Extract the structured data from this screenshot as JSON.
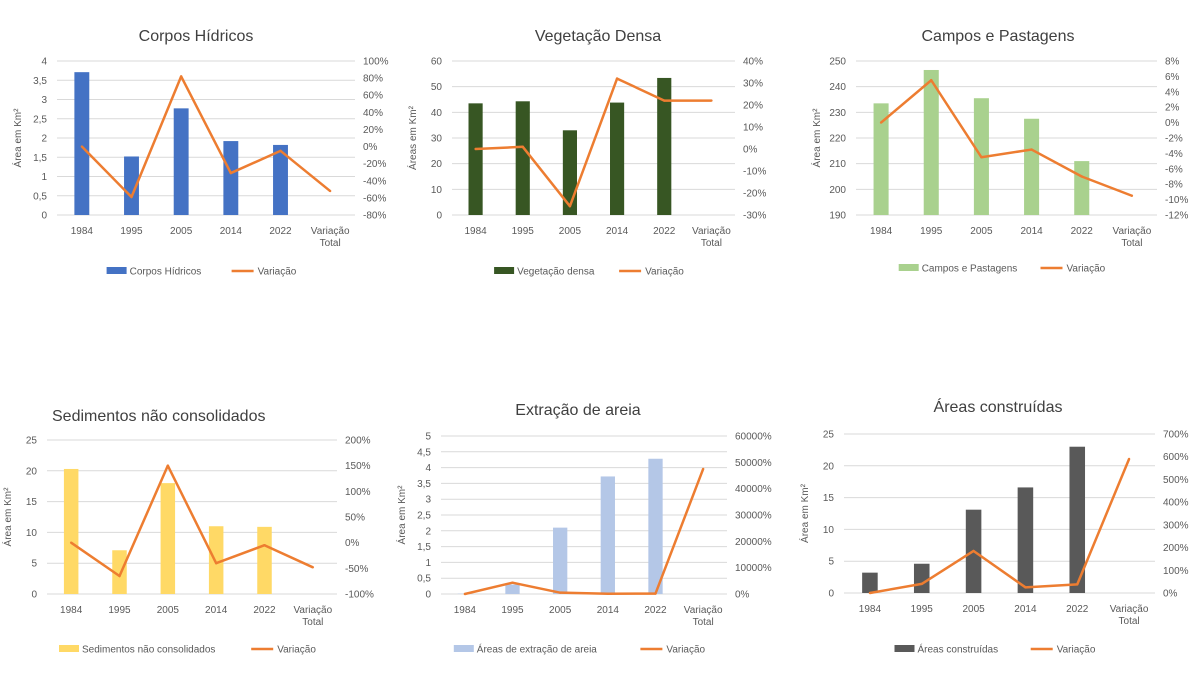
{
  "chart_data": [
    {
      "type": "bar",
      "title": "Corpos Hídricos",
      "categories": [
        "1984",
        "1995",
        "2005",
        "2014",
        "2022",
        "Variação Total"
      ],
      "xlabel": "",
      "ylabel": "Área em Km²",
      "ylim": [
        0,
        4
      ],
      "y_ticks": [
        "0",
        "0,5",
        "1",
        "1,5",
        "2",
        "2,5",
        "3",
        "3,5",
        "4"
      ],
      "y2lim": [
        -80,
        100
      ],
      "y2_ticks": [
        "-80%",
        "-60%",
        "-40%",
        "-20%",
        "0%",
        "20%",
        "40%",
        "60%",
        "80%",
        "100%"
      ],
      "grid": true,
      "legend_position": "bottom",
      "series": [
        {
          "name": "Corpos Hídricos",
          "kind": "bar",
          "axis": "left",
          "color": "#4472c4",
          "values": [
            3.71,
            1.52,
            2.77,
            1.92,
            1.82,
            null
          ]
        },
        {
          "name": "Variação",
          "kind": "line",
          "axis": "right",
          "color": "#ed7d31",
          "values": [
            0,
            -59,
            82,
            -31,
            -5,
            -52
          ]
        }
      ]
    },
    {
      "type": "bar",
      "title": "Vegetação Densa",
      "categories": [
        "1984",
        "1995",
        "2005",
        "2014",
        "2022",
        "Variação Total"
      ],
      "xlabel": "",
      "ylabel": "Áreas em Km²",
      "ylim": [
        0,
        60
      ],
      "y_ticks": [
        "0",
        "10",
        "20",
        "30",
        "40",
        "50",
        "60"
      ],
      "y2lim": [
        -30,
        40
      ],
      "y2_ticks": [
        "-30%",
        "-20%",
        "-10%",
        "0%",
        "10%",
        "20%",
        "30%",
        "40%"
      ],
      "grid": true,
      "legend_position": "bottom",
      "series": [
        {
          "name": "Vegetação densa",
          "kind": "bar",
          "axis": "left",
          "color": "#375623",
          "values": [
            43.5,
            44.3,
            33,
            43.8,
            53.4,
            null
          ]
        },
        {
          "name": "Variação",
          "kind": "line",
          "axis": "right",
          "color": "#ed7d31",
          "values": [
            0,
            1,
            -26,
            32,
            22,
            22
          ]
        }
      ]
    },
    {
      "type": "bar",
      "title": "Campos e Pastagens",
      "categories": [
        "1984",
        "1995",
        "2005",
        "2014",
        "2022",
        "Variação Total"
      ],
      "xlabel": "",
      "ylabel": "Área em Km²",
      "ylim": [
        190,
        250
      ],
      "y_ticks": [
        "190",
        "200",
        "210",
        "220",
        "230",
        "240",
        "250"
      ],
      "y2lim": [
        -12,
        8
      ],
      "y2_ticks": [
        "-12%",
        "-10%",
        "-8%",
        "-6%",
        "-4%",
        "-2%",
        "0%",
        "2%",
        "4%",
        "6%",
        "8%"
      ],
      "grid": true,
      "legend_position": "bottom",
      "series": [
        {
          "name": "Campos e Pastagens",
          "kind": "bar",
          "axis": "left",
          "color": "#a9d18e",
          "values": [
            233.5,
            246.5,
            235.5,
            227.5,
            211,
            null
          ]
        },
        {
          "name": "Variação",
          "kind": "line",
          "axis": "right",
          "color": "#ed7d31",
          "values": [
            0,
            5.5,
            -4.5,
            -3.5,
            -7,
            -9.5
          ]
        }
      ]
    },
    {
      "type": "bar",
      "title": "Sedimentos não consolidados",
      "categories": [
        "1984",
        "1995",
        "2005",
        "2014",
        "2022",
        "Variação Total"
      ],
      "xlabel": "",
      "ylabel": "Área em Km²",
      "ylim": [
        0,
        25
      ],
      "y_ticks": [
        "0",
        "5",
        "10",
        "15",
        "20",
        "25"
      ],
      "y2lim": [
        -100,
        200
      ],
      "y2_ticks": [
        "-100%",
        "-50%",
        "0%",
        "50%",
        "100%",
        "150%",
        "200%"
      ],
      "grid": true,
      "legend_position": "bottom",
      "series": [
        {
          "name": "Sedimentos não consolidados",
          "kind": "bar",
          "axis": "left",
          "color": "#ffd966",
          "values": [
            20.3,
            7.1,
            18,
            11,
            10.9,
            null
          ]
        },
        {
          "name": "Variação",
          "kind": "line",
          "axis": "right",
          "color": "#ed7d31",
          "values": [
            0,
            -65,
            150,
            -40,
            -5,
            -48
          ]
        }
      ]
    },
    {
      "type": "bar",
      "title": "Extração de areia",
      "categories": [
        "1984",
        "1995",
        "2005",
        "2014",
        "2022",
        "Variação Total"
      ],
      "xlabel": "",
      "ylabel": "Área em Km²",
      "ylim": [
        0,
        5
      ],
      "y_ticks": [
        "0",
        "0,5",
        "1",
        "1,5",
        "2",
        "2,5",
        "3",
        "3,5",
        "4",
        "4,5",
        "5"
      ],
      "y2lim": [
        0,
        60000
      ],
      "y2_ticks": [
        "0%",
        "10000%",
        "20000%",
        "30000%",
        "40000%",
        "50000%",
        "60000%"
      ],
      "grid": true,
      "legend_position": "bottom",
      "series": [
        {
          "name": "Áreas de extração de areia",
          "kind": "bar",
          "axis": "left",
          "color": "#b4c7e7",
          "values": [
            0.01,
            0.3,
            2.1,
            3.72,
            4.28,
            null
          ]
        },
        {
          "name": "Variação",
          "kind": "line",
          "axis": "right",
          "color": "#ed7d31",
          "values": [
            0,
            4300,
            500,
            80,
            150,
            47500
          ]
        }
      ]
    },
    {
      "type": "bar",
      "title": "Áreas construídas",
      "categories": [
        "1984",
        "1995",
        "2005",
        "2014",
        "2022",
        "Variação Total"
      ],
      "xlabel": "",
      "ylabel": "Área em Km²",
      "ylim": [
        0,
        25
      ],
      "y_ticks": [
        "0",
        "5",
        "10",
        "15",
        "20",
        "25"
      ],
      "y2lim": [
        0,
        700
      ],
      "y2_ticks": [
        "0%",
        "100%",
        "200%",
        "300%",
        "400%",
        "500%",
        "600%",
        "700%"
      ],
      "grid": true,
      "legend_position": "bottom",
      "series": [
        {
          "name": "Áreas construídas",
          "kind": "bar",
          "axis": "left",
          "color": "#595959",
          "values": [
            3.2,
            4.6,
            13.1,
            16.6,
            23,
            null
          ]
        },
        {
          "name": "Variação",
          "kind": "line",
          "axis": "right",
          "color": "#ed7d31",
          "values": [
            0,
            40,
            185,
            25,
            38,
            590
          ]
        }
      ]
    }
  ]
}
